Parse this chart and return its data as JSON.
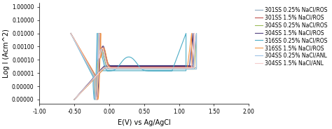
{
  "title": "",
  "xlabel": "E(V) vs Ag/AgCl",
  "ylabel": "Log I (Acm^2)",
  "xlim": [
    -1.0,
    2.0
  ],
  "ytick_labels": [
    "1.00000",
    "0.10000",
    "0.01000",
    "0.00100",
    "0.00010",
    "0.00001",
    "0.00000",
    "0.00000"
  ],
  "ytick_vals": [
    1.0,
    0.1,
    0.01,
    0.001,
    0.0001,
    1e-05,
    1e-06,
    1e-07
  ],
  "series": [
    {
      "label": "301SS 0.25% NaCl/ROS",
      "color": "#8EA9C1",
      "linewidth": 0.8
    },
    {
      "label": "301SS 1.5% NaCl/ROS",
      "color": "#C0504D",
      "linewidth": 0.8
    },
    {
      "label": "304SS 0.25% NaCl/ROS",
      "color": "#9BBB59",
      "linewidth": 0.8
    },
    {
      "label": "304SS 1.5% NaCl/ROS",
      "color": "#4F3F7F",
      "linewidth": 0.8
    },
    {
      "label": "316SS 0.25% NaCl/ROS",
      "color": "#4BACC6",
      "linewidth": 0.8
    },
    {
      "label": "316SS 1.5% NaCl/ROS",
      "color": "#F79646",
      "linewidth": 0.8
    },
    {
      "label": "304SS 0.25% NaCl/ANL",
      "color": "#9DC3E6",
      "linewidth": 0.8
    },
    {
      "label": "304SS 1.5% NaCl/ANL",
      "color": "#F4CCCC",
      "linewidth": 0.8
    }
  ],
  "background_color": "#ffffff",
  "legend_fontsize": 5.5,
  "axis_fontsize": 7,
  "tick_fontsize": 5.5
}
